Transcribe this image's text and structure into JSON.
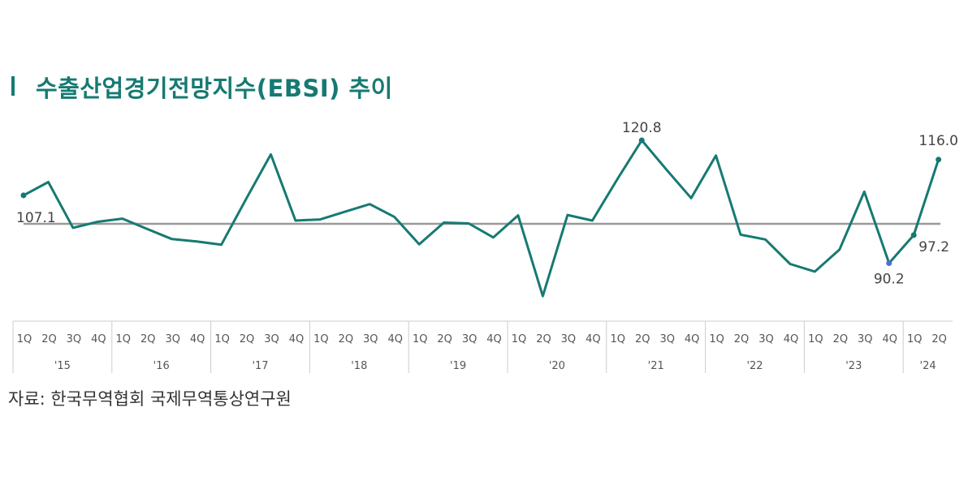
{
  "title": "수출산업경기전망지수(EBSI) 추이",
  "source": "자료: 한국무역협회 국제무역통상연구원",
  "colors": {
    "line": "#167a72",
    "baseline": "#999999",
    "title": "#167a72",
    "highlight_point": "#4a6fd0"
  },
  "chart_data": {
    "type": "line",
    "title": "수출산업경기전망지수(EBSI) 추이",
    "quarters": [
      "1Q",
      "2Q",
      "3Q",
      "4Q"
    ],
    "years": [
      "'15",
      "'16",
      "'17",
      "'18",
      "'19",
      "'20",
      "'21",
      "'22",
      "'23",
      "'24"
    ],
    "x": [
      "'15 1Q",
      "'15 2Q",
      "'15 3Q",
      "'15 4Q",
      "'16 1Q",
      "'16 2Q",
      "'16 3Q",
      "'16 4Q",
      "'17 1Q",
      "'17 2Q",
      "'17 3Q",
      "'17 4Q",
      "'18 1Q",
      "'18 2Q",
      "'18 3Q",
      "'18 4Q",
      "'19 1Q",
      "'19 2Q",
      "'19 3Q",
      "'19 4Q",
      "'20 1Q",
      "'20 2Q",
      "'20 3Q",
      "'20 4Q",
      "'21 1Q",
      "'21 2Q",
      "'21 3Q",
      "'21 4Q",
      "'22 1Q",
      "'22 2Q",
      "'22 3Q",
      "'22 4Q",
      "'23 1Q",
      "'23 2Q",
      "'23 3Q",
      "'23 4Q",
      "'24 1Q",
      "'24 2Q"
    ],
    "values": [
      107.1,
      110.4,
      99.0,
      100.5,
      101.3,
      98.7,
      96.2,
      95.6,
      94.8,
      106.2,
      117.3,
      100.8,
      101.1,
      103.0,
      104.9,
      101.7,
      94.9,
      100.3,
      100.1,
      96.6,
      102.1,
      82.0,
      102.2,
      100.8,
      111.0,
      120.8,
      113.5,
      106.4,
      117.0,
      97.3,
      96.1,
      90.0,
      88.1,
      93.6,
      108.0,
      90.2,
      97.2,
      116.0
    ],
    "baseline": 100,
    "ylim": [
      80,
      125
    ],
    "annotations": [
      {
        "index": 0,
        "label": "107.1"
      },
      {
        "index": 25,
        "label": "120.8"
      },
      {
        "index": 35,
        "label": "90.2"
      },
      {
        "index": 36,
        "label": "97.2"
      },
      {
        "index": 37,
        "label": "116.0"
      }
    ],
    "grid": false,
    "legend": "none"
  }
}
